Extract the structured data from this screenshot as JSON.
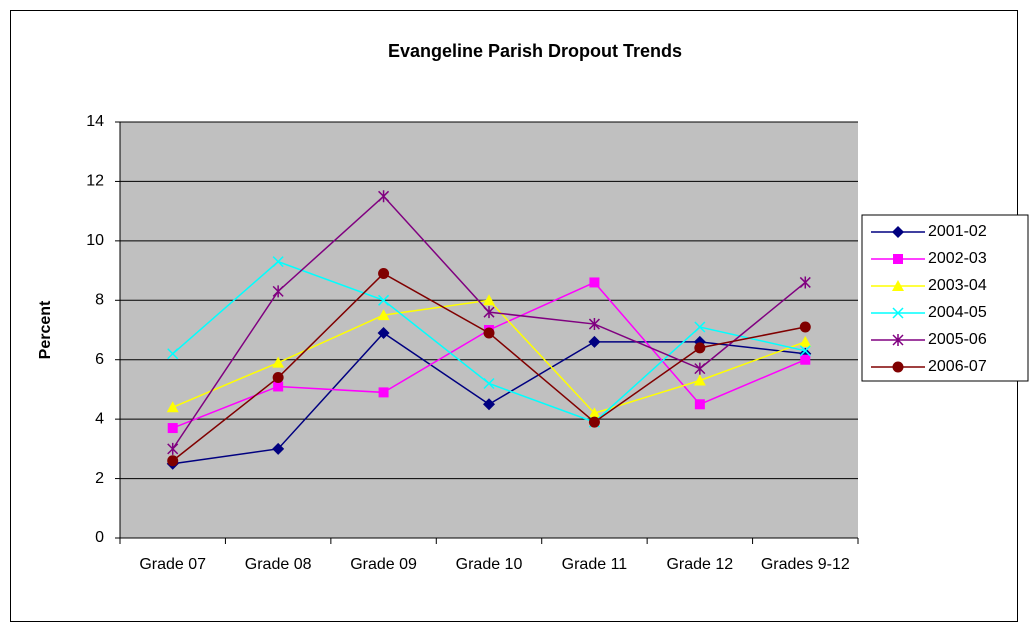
{
  "chart_data": {
    "type": "line",
    "title": "Evangeline Parish Dropout Trends",
    "y_label": "Percent",
    "categories": [
      "Grade 07",
      "Grade 08",
      "Grade 09",
      "Grade 10",
      "Grade 11",
      "Grade 12",
      "Grades 9-12"
    ],
    "series": [
      {
        "name": "2001-02",
        "color": "#000080",
        "marker": "diamond",
        "values": [
          2.5,
          3.0,
          6.9,
          4.5,
          6.6,
          6.6,
          6.2
        ]
      },
      {
        "name": "2002-03",
        "color": "#ff00ff",
        "marker": "square",
        "values": [
          3.7,
          5.1,
          4.9,
          7.0,
          8.6,
          4.5,
          6.0
        ]
      },
      {
        "name": "2003-04",
        "color": "#ffff00",
        "marker": "triangle",
        "values": [
          4.4,
          5.9,
          7.5,
          8.0,
          4.2,
          5.3,
          6.6
        ]
      },
      {
        "name": "2004-05",
        "color": "#00ffff",
        "marker": "x",
        "values": [
          6.2,
          9.3,
          8.0,
          5.2,
          3.9,
          7.1,
          6.3
        ]
      },
      {
        "name": "2005-06",
        "color": "#800080",
        "marker": "star",
        "values": [
          3.0,
          8.3,
          11.5,
          7.6,
          7.2,
          5.7,
          8.6
        ]
      },
      {
        "name": "2006-07",
        "color": "#800000",
        "marker": "circle",
        "values": [
          2.6,
          5.4,
          8.9,
          6.9,
          3.9,
          6.4,
          7.1
        ]
      }
    ],
    "ylim": [
      0,
      14
    ],
    "yticks": [
      0,
      2,
      4,
      6,
      8,
      10,
      12,
      14
    ],
    "grid": true,
    "legend": "right"
  }
}
